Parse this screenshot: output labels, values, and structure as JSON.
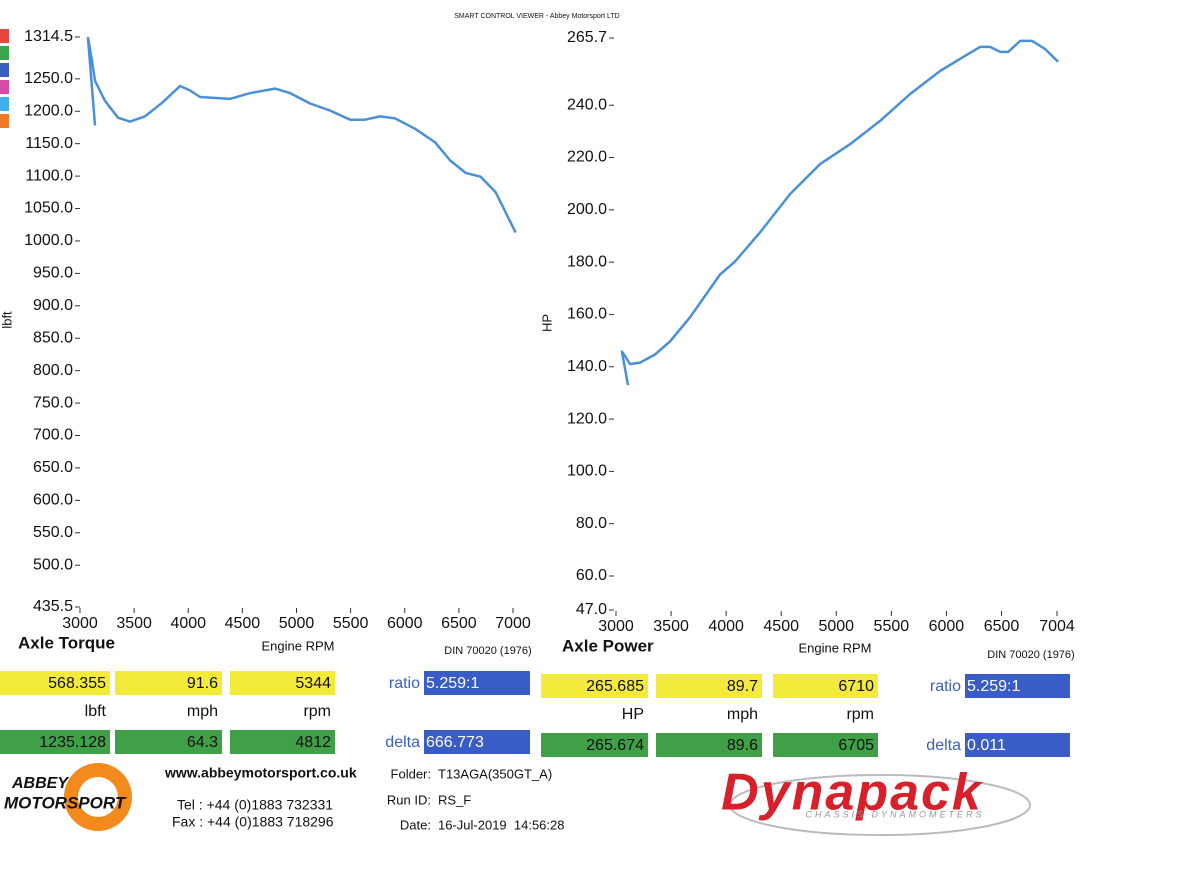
{
  "header": "SMART CONTROL VIEWER - Abbey Motorsport LTD",
  "chart_data": [
    {
      "type": "line",
      "title": "Axle Torque",
      "x_label": "Engine RPM",
      "y_label": "lbft",
      "standard": "DIN 70020 (1976)",
      "color": "#4a90d9",
      "x": [
        3139,
        3074,
        3111,
        3139,
        3231,
        3351,
        3462,
        3600,
        3758,
        3924,
        4017,
        4109,
        4386,
        4571,
        4802,
        4941,
        5126,
        5310,
        5495,
        5634,
        5772,
        5911,
        6096,
        6281,
        6420,
        6562,
        6701,
        6840,
        7024
      ],
      "values": [
        1178,
        1313,
        1278,
        1247,
        1216,
        1190,
        1184,
        1192,
        1213,
        1239,
        1232,
        1222,
        1219,
        1228,
        1235,
        1228,
        1212,
        1201,
        1187,
        1187,
        1192,
        1189,
        1173,
        1152,
        1124,
        1105,
        1099,
        1075,
        1013
      ],
      "xlim": [
        3000,
        7000
      ],
      "xticks": [
        3000,
        3500,
        4000,
        4500,
        5000,
        5500,
        6000,
        6500,
        7000
      ],
      "ylim": [
        435.5,
        1314.5
      ],
      "yticks": [
        1314.5,
        {
          "value": 1250,
          "label": "1250.0"
        },
        {
          "value": 1200,
          "label": "1200.0"
        },
        {
          "value": 1150,
          "label": "1150.0"
        },
        {
          "value": 1100,
          "label": "1100.0"
        },
        {
          "value": 1050,
          "label": "1050.0"
        },
        {
          "value": 1000,
          "label": "1000.0"
        },
        {
          "value": 950,
          "label": "950.0"
        },
        {
          "value": 900,
          "label": "900.0"
        },
        {
          "value": 850,
          "label": "850.0"
        },
        {
          "value": 800,
          "label": "800.0"
        },
        {
          "value": 750,
          "label": "750.0"
        },
        {
          "value": 700,
          "label": "700.0"
        },
        {
          "value": 650,
          "label": "650.0"
        },
        {
          "value": 600,
          "label": "600.0"
        },
        {
          "value": 550,
          "label": "550.0"
        },
        {
          "value": 500,
          "label": "500.0"
        },
        435.5
      ]
    },
    {
      "type": "line",
      "title": "Axle Power",
      "x_label": "Engine RPM",
      "y_label": "HP",
      "standard": "DIN 70020 (1976)",
      "color": "#4a90d9",
      "x": [
        3109,
        3054,
        3091,
        3127,
        3218,
        3354,
        3490,
        3672,
        3945,
        4081,
        4308,
        4580,
        4853,
        5125,
        5398,
        5670,
        5943,
        6170,
        6306,
        6397,
        6488,
        6561,
        6669,
        6778,
        6896,
        7014
      ],
      "values": [
        133,
        145.8,
        143.5,
        141,
        141.6,
        144.7,
        149.7,
        158.9,
        175.3,
        180.3,
        191.4,
        206,
        217.5,
        225.1,
        234,
        244.3,
        253.1,
        258.9,
        262.3,
        262.3,
        260.4,
        260.4,
        264.6,
        264.6,
        261.5,
        256.6
      ],
      "xlim": [
        3000,
        7004
      ],
      "xticks": [
        3000,
        3500,
        4000,
        4500,
        5000,
        5500,
        6000,
        6500,
        7004
      ],
      "ylim": [
        47,
        265.7
      ],
      "yticks": [
        265.7,
        {
          "value": 240,
          "label": "240.0"
        },
        {
          "value": 220,
          "label": "220.0"
        },
        {
          "value": 200,
          "label": "200.0"
        },
        {
          "value": 180,
          "label": "180.0"
        },
        {
          "value": 160,
          "label": "160.0"
        },
        {
          "value": 140,
          "label": "140.0"
        },
        {
          "value": 120,
          "label": "120.0"
        },
        {
          "value": 100,
          "label": "100.0"
        },
        {
          "value": 80,
          "label": "80.0"
        },
        {
          "value": 60,
          "label": "60.0"
        },
        {
          "value": 47,
          "label": "47.0"
        }
      ]
    }
  ],
  "readouts": [
    {
      "primary": [
        "568.355",
        "91.6",
        "5344"
      ],
      "units": [
        "lbft",
        "mph",
        "rpm"
      ],
      "secondary": [
        "1235.128",
        "64.3",
        "4812"
      ],
      "ratio_label": "ratio",
      "ratio": "5.259:1",
      "delta_label": "delta",
      "delta": "666.773"
    },
    {
      "primary": [
        "265.685",
        "89.7",
        "6710"
      ],
      "units": [
        "HP",
        "mph",
        "rpm"
      ],
      "secondary": [
        "265.674",
        "89.6",
        "6705"
      ],
      "ratio_label": "ratio",
      "ratio": "5.259:1",
      "delta_label": "delta",
      "delta": "0.011"
    }
  ],
  "footer": {
    "logo": [
      "ABBEY",
      "MOTORSPORT"
    ],
    "website": "www.abbeymotorsport.co.uk",
    "tel": "Tel : +44 (0)1883 732331",
    "fax": "Fax : +44 (0)1883 718296",
    "run_info": [
      {
        "label": "Folder:",
        "value": "T13AGA(350GT_A)"
      },
      {
        "label": "Run ID:",
        "value": "RS_F"
      },
      {
        "label": "Date:",
        "value": "16-Jul-2019  14:56:28"
      }
    ],
    "brand": "Dynapack",
    "brand_sub": "CHASSIS DYNAMOMETERS"
  }
}
